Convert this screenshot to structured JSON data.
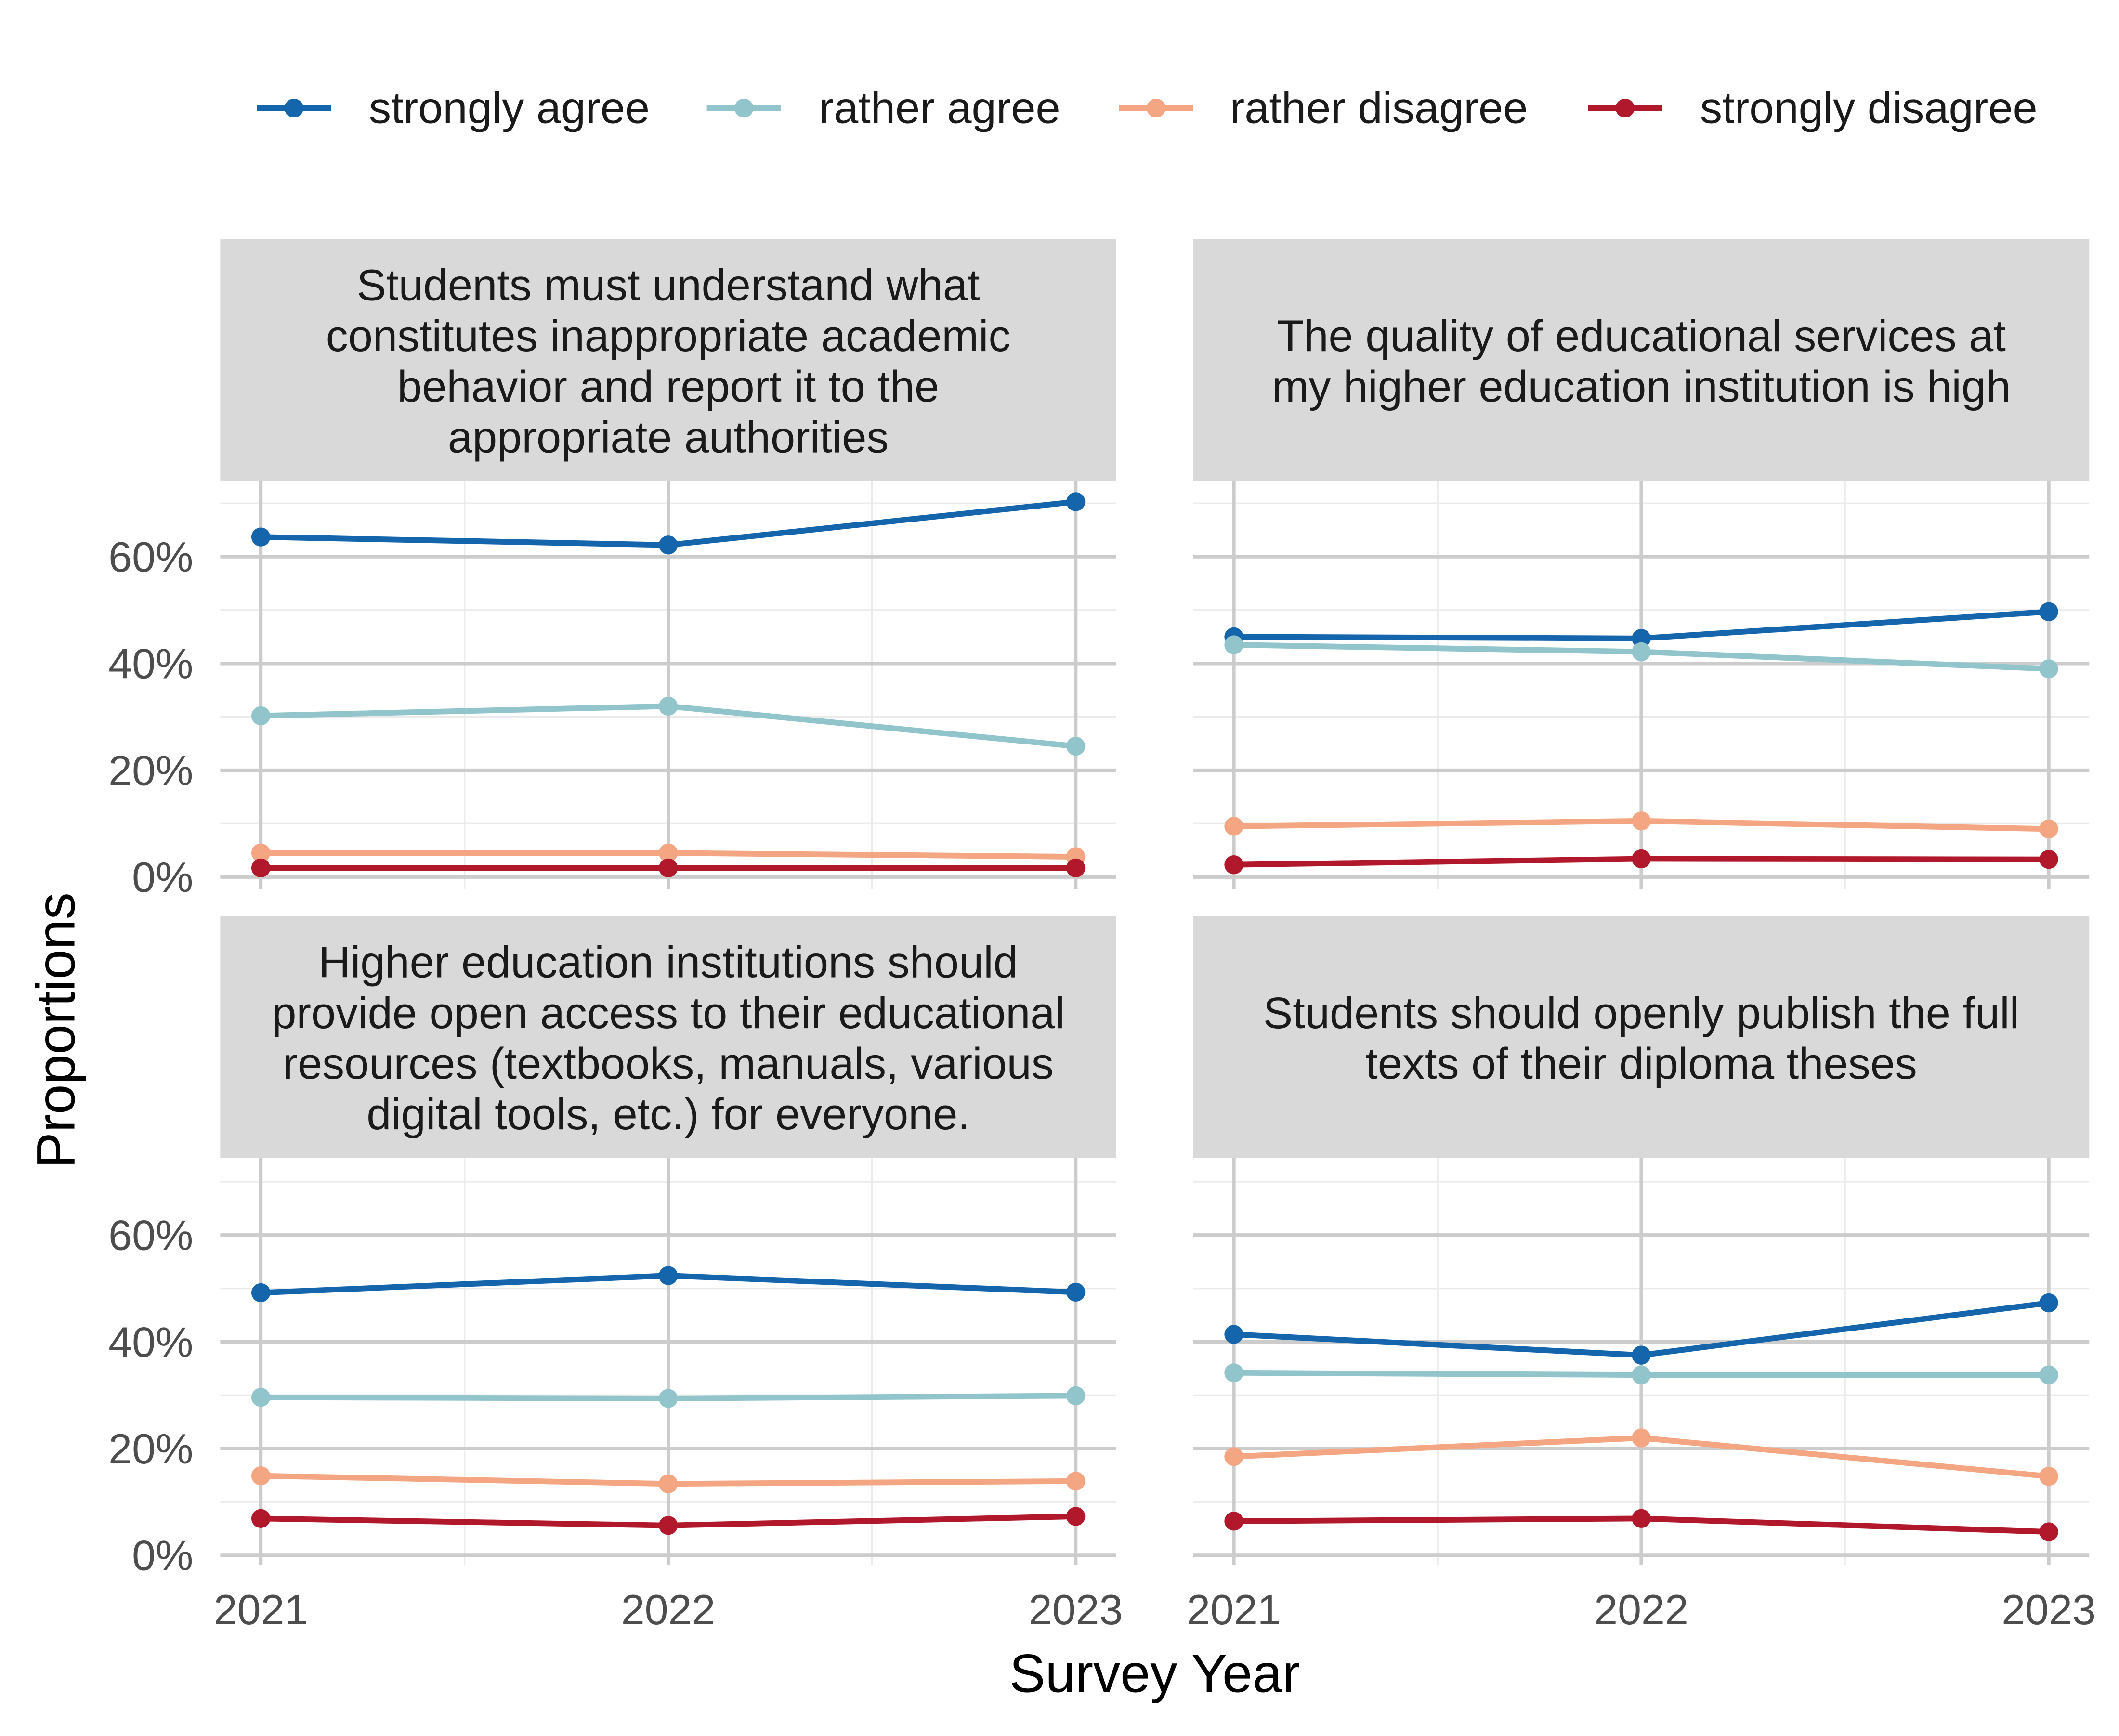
{
  "chart_data": {
    "type": "line",
    "xlabel": "Survey Year",
    "ylabel": "Proportions",
    "x": [
      2021,
      2022,
      2023
    ],
    "x_tick_labels": [
      "2021",
      "2022",
      "2023"
    ],
    "ylim": [
      0,
      0.72
    ],
    "y_ticks": [
      0,
      0.2,
      0.4,
      0.6
    ],
    "y_tick_labels": [
      "0%",
      "20%",
      "40%",
      "60%"
    ],
    "grid": true,
    "legend_position": "top",
    "series_meta": [
      {
        "name": "strongly agree",
        "color": "#1565AD"
      },
      {
        "name": "rather agree",
        "color": "#92C5CB"
      },
      {
        "name": "rather disagree",
        "color": "#F4A582"
      },
      {
        "name": "strongly disagree",
        "color": "#B2182B"
      }
    ],
    "panels": [
      {
        "title_lines": [
          "Students must understand what",
          "constitutes inappropriate academic",
          "behavior and report it to the",
          "appropriate authorities"
        ],
        "series": [
          {
            "name": "strongly agree",
            "values": [
              0.637,
              0.622,
              0.703
            ]
          },
          {
            "name": "rather agree",
            "values": [
              0.302,
              0.32,
              0.245
            ]
          },
          {
            "name": "rather disagree",
            "values": [
              0.045,
              0.045,
              0.038
            ]
          },
          {
            "name": "strongly disagree",
            "values": [
              0.017,
              0.017,
              0.017
            ]
          }
        ]
      },
      {
        "title_lines": [
          "The quality of educational services at",
          "my higher education institution is high"
        ],
        "series": [
          {
            "name": "strongly agree",
            "values": [
              0.45,
              0.447,
              0.497
            ]
          },
          {
            "name": "rather agree",
            "values": [
              0.435,
              0.422,
              0.39
            ]
          },
          {
            "name": "rather disagree",
            "values": [
              0.095,
              0.105,
              0.09
            ]
          },
          {
            "name": "strongly disagree",
            "values": [
              0.023,
              0.034,
              0.033
            ]
          }
        ]
      },
      {
        "title_lines": [
          "Higher education institutions should",
          "provide open access to their educational",
          "resources (textbooks, manuals, various",
          "digital tools, etc.) for everyone."
        ],
        "series": [
          {
            "name": "strongly agree",
            "values": [
              0.492,
              0.524,
              0.493
            ]
          },
          {
            "name": "rather agree",
            "values": [
              0.296,
              0.294,
              0.299
            ]
          },
          {
            "name": "rather disagree",
            "values": [
              0.149,
              0.134,
              0.139
            ]
          },
          {
            "name": "strongly disagree",
            "values": [
              0.069,
              0.056,
              0.073
            ]
          }
        ]
      },
      {
        "title_lines": [
          "Students should openly publish the full",
          "texts of their diploma theses"
        ],
        "series": [
          {
            "name": "strongly agree",
            "values": [
              0.414,
              0.375,
              0.473
            ]
          },
          {
            "name": "rather agree",
            "values": [
              0.342,
              0.338,
              0.338
            ]
          },
          {
            "name": "rather disagree",
            "values": [
              0.185,
              0.22,
              0.148
            ]
          },
          {
            "name": "strongly disagree",
            "values": [
              0.064,
              0.069,
              0.044
            ]
          }
        ]
      }
    ]
  }
}
